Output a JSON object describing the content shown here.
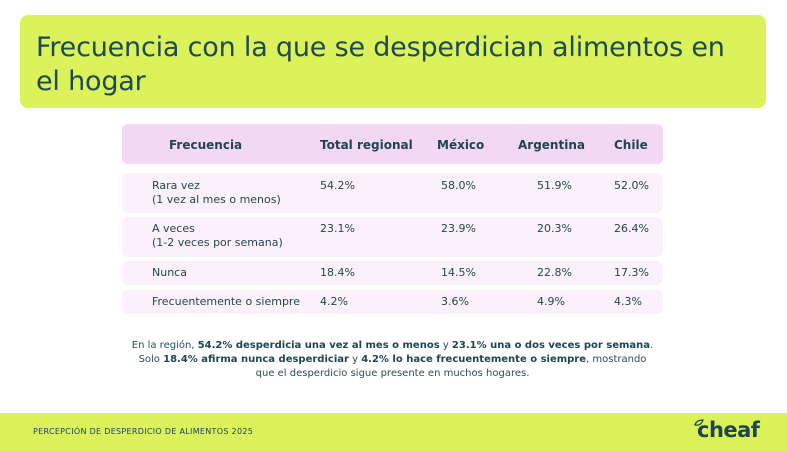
{
  "title": "Frecuencia con la que se desperdician alimentos en el hogar",
  "table": {
    "headers": [
      "Frecuencia",
      "Total regional",
      "México",
      "Argentina",
      "Chile"
    ],
    "rows": [
      {
        "label": "Rara vez",
        "sublabel": "(1 vez al mes o menos)",
        "values": [
          "54.2%",
          "58.0%",
          "51.9%",
          "52.0%"
        ]
      },
      {
        "label": "A veces",
        "sublabel": "(1-2 veces por semana)",
        "values": [
          "23.1%",
          "23.9%",
          "20.3%",
          "26.4%"
        ]
      },
      {
        "label": "Nunca",
        "sublabel": "",
        "values": [
          "18.4%",
          "14.5%",
          "22.8%",
          "17.3%"
        ]
      },
      {
        "label": "Frecuentemente o siempre",
        "sublabel": "",
        "values": [
          "4.2%",
          "3.6%",
          "4.9%",
          "4.3%"
        ]
      }
    ]
  },
  "summary": {
    "p1": "En la región, ",
    "b1": "54.2% desperdicia una vez al mes o menos",
    "p2": " y ",
    "b2": "23.1% una o dos veces por semana",
    "p3": ".",
    "p4": "Solo ",
    "b3": "18.4% afirma nunca desperdiciar",
    "p5": " y ",
    "b4": "4.2% lo hace frecuentemente o siempre",
    "p6": ", mostrando que el desperdicio sigue presente en muchos hogares."
  },
  "footer": {
    "text": "PERCEPCIÓN DE DESPERDICIO DE ALIMENTOS 2025",
    "logo": "cheaf"
  },
  "colors": {
    "accent_lime": "#dcf25a",
    "header_pink": "#f2d8f3",
    "row_pink": "#fbf1fb",
    "text_teal": "#1e4a55"
  }
}
